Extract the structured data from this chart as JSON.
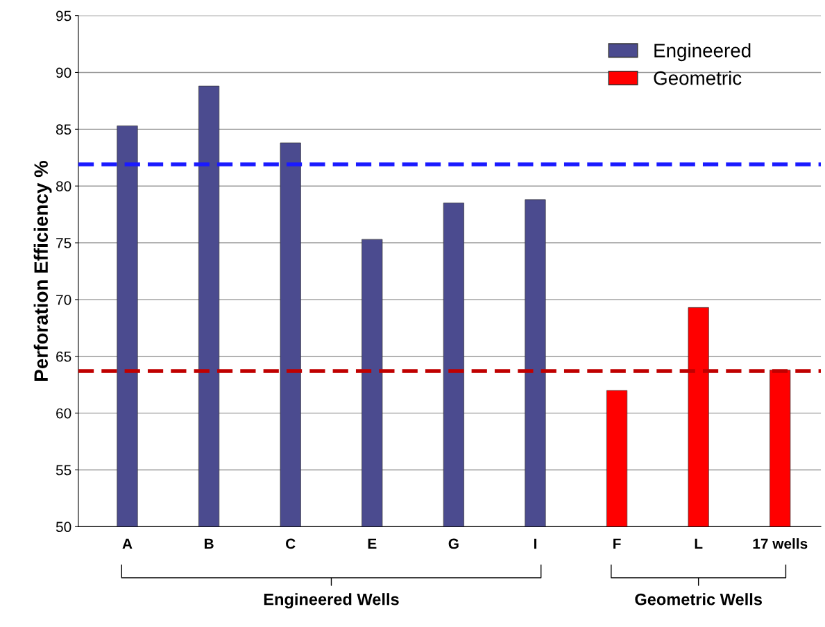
{
  "chart_data": {
    "type": "bar",
    "ylabel": "Perforation Efficiency %",
    "categories": [
      "A",
      "B",
      "C",
      "E",
      "G",
      "I",
      "F",
      "L",
      "17 wells"
    ],
    "series": [
      {
        "name": "Engineered",
        "color": "#4b4b8f",
        "values": [
          85.3,
          88.8,
          83.8,
          75.3,
          78.5,
          78.8,
          null,
          null,
          null
        ]
      },
      {
        "name": "Geometric",
        "color": "#ff0000",
        "values": [
          null,
          null,
          null,
          null,
          null,
          null,
          62.0,
          69.3,
          63.8
        ]
      }
    ],
    "ylim": [
      50,
      95
    ],
    "yticks": [
      50,
      55,
      60,
      65,
      70,
      75,
      80,
      85,
      90,
      95
    ],
    "grid": "y",
    "legend": "top right",
    "ref_lines": [
      {
        "axis": "y",
        "value": 81.9,
        "color": "#1a1aff",
        "line_style": "dashed"
      },
      {
        "axis": "y",
        "value": 63.7,
        "color": "#c00000",
        "line_style": "dashed"
      }
    ],
    "annotations": [
      "Engineered Wells",
      "Geometric Wells"
    ]
  }
}
